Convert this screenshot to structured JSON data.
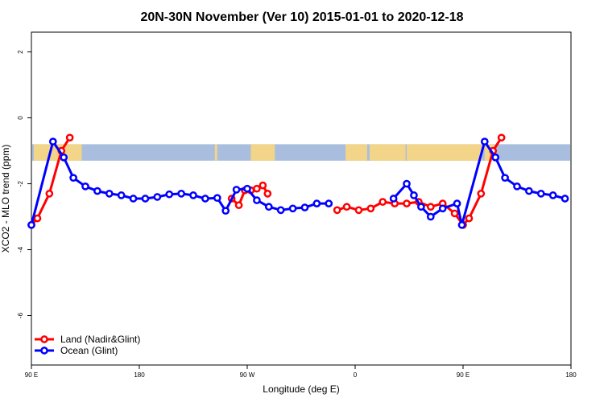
{
  "chart_data": {
    "type": "line",
    "title": "20N-30N November (Ver 10)   2015-01-01 to 2020-12-18",
    "xlabel": "Longitude (deg E)",
    "ylabel": "XCO2 - MLO trend (ppm)",
    "xlim": [
      90,
      540
    ],
    "ylim": [
      -7.5,
      2.6
    ],
    "x_ticks": [
      {
        "value": 90,
        "label": "90 E"
      },
      {
        "value": 180,
        "label": "180"
      },
      {
        "value": 270,
        "label": "90 W"
      },
      {
        "value": 360,
        "label": "0"
      },
      {
        "value": 450,
        "label": "90 E"
      },
      {
        "value": 540,
        "label": "180"
      }
    ],
    "y_ticks": [
      {
        "value": 2,
        "label": "2"
      },
      {
        "value": 0,
        "label": "0"
      },
      {
        "value": -2,
        "label": "-2"
      },
      {
        "value": -4,
        "label": "-4"
      },
      {
        "value": -6,
        "label": "-6"
      }
    ],
    "x_unwrapped_note": "",
    "map_strip": {
      "y_top": -0.8,
      "y_bottom": -1.3
    },
    "legend": {
      "position": "bottom-left"
    },
    "series": [
      {
        "name": "Land (Nadir&Glint)",
        "color": "#ff0000",
        "segments": [
          [
            [
              90,
              -3.25
            ],
            [
              95,
              -3.05
            ],
            [
              105,
              -2.3
            ],
            [
              115,
              -1.0
            ],
            [
              122,
              -0.6
            ]
          ],
          [
            [
              257,
              -2.45
            ],
            [
              263,
              -2.65
            ],
            [
              268,
              -2.2
            ],
            [
              273,
              -2.2
            ],
            [
              278,
              -2.15
            ],
            [
              283,
              -2.05
            ],
            [
              287,
              -2.3
            ]
          ],
          [
            [
              345,
              -2.8
            ],
            [
              353,
              -2.7
            ],
            [
              363,
              -2.8
            ],
            [
              373,
              -2.75
            ],
            [
              383,
              -2.55
            ],
            [
              393,
              -2.6
            ],
            [
              403,
              -2.6
            ],
            [
              413,
              -2.55
            ],
            [
              423,
              -2.7
            ],
            [
              433,
              -2.6
            ],
            [
              443,
              -2.9
            ],
            [
              450,
              -3.25
            ],
            [
              455,
              -3.05
            ],
            [
              465,
              -2.3
            ],
            [
              475,
              -1.0
            ],
            [
              482,
              -0.6
            ]
          ]
        ]
      },
      {
        "name": "Ocean (Glint)",
        "color": "#0000ff",
        "segments": [
          [
            [
              90,
              -3.25
            ],
            [
              108,
              -0.72
            ],
            [
              117,
              -1.2
            ],
            [
              125,
              -1.82
            ],
            [
              135,
              -2.08
            ],
            [
              145,
              -2.22
            ],
            [
              155,
              -2.3
            ],
            [
              165,
              -2.35
            ],
            [
              175,
              -2.45
            ],
            [
              185,
              -2.45
            ],
            [
              195,
              -2.4
            ],
            [
              205,
              -2.32
            ],
            [
              215,
              -2.3
            ],
            [
              225,
              -2.35
            ],
            [
              235,
              -2.45
            ],
            [
              245,
              -2.43
            ],
            [
              252,
              -2.82
            ],
            [
              261,
              -2.18
            ],
            [
              270,
              -2.15
            ],
            [
              278,
              -2.5
            ],
            [
              288,
              -2.7
            ],
            [
              298,
              -2.8
            ],
            [
              308,
              -2.75
            ],
            [
              318,
              -2.72
            ],
            [
              328,
              -2.6
            ],
            [
              338,
              -2.6
            ]
          ],
          [
            [
              392,
              -2.45
            ],
            [
              403,
              -2.0
            ],
            [
              409,
              -2.35
            ],
            [
              415,
              -2.7
            ],
            [
              423,
              -3.0
            ],
            [
              433,
              -2.75
            ],
            [
              445,
              -2.6
            ],
            [
              449,
              -3.25
            ],
            [
              468,
              -0.72
            ],
            [
              477,
              -1.2
            ],
            [
              485,
              -1.82
            ],
            [
              495,
              -2.08
            ],
            [
              505,
              -2.22
            ],
            [
              515,
              -2.3
            ],
            [
              525,
              -2.35
            ],
            [
              535,
              -2.45
            ]
          ]
        ]
      }
    ]
  }
}
